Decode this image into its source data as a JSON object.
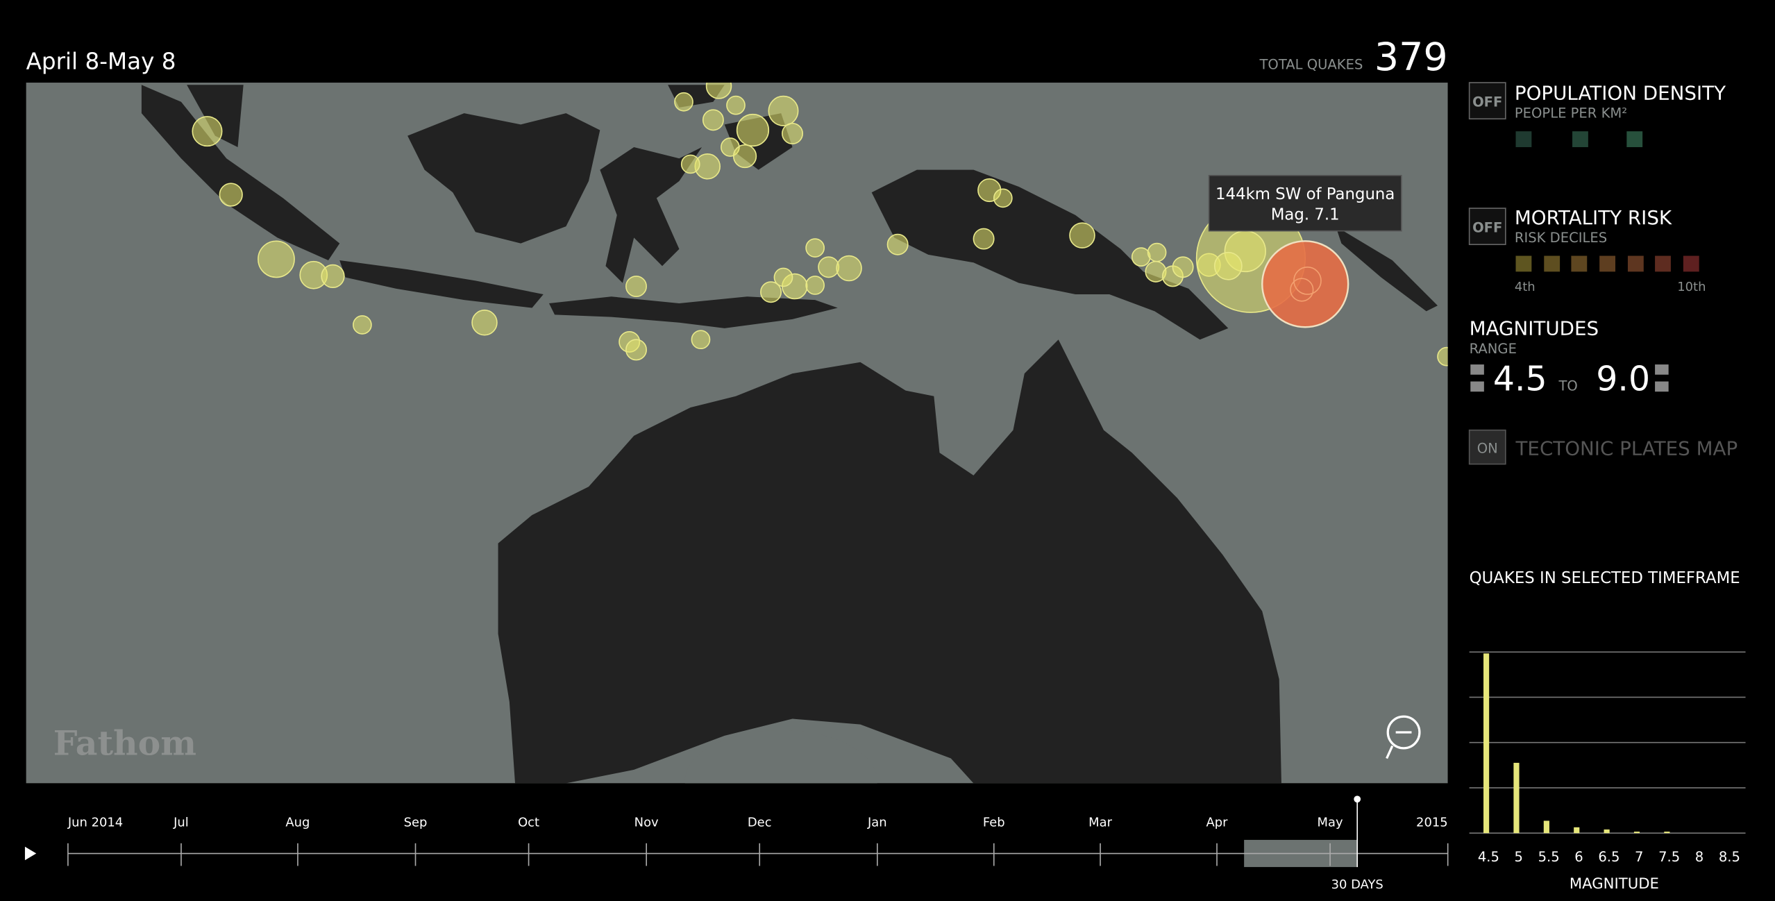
{
  "header": {
    "date_range": "April 8-May 8",
    "total_label": "TOTAL QUAKES",
    "total": 379
  },
  "map": {
    "tooltip": {
      "place": "144km SW of Panguna",
      "magnitude": "Mag. 7.1"
    },
    "logo": "Fathom"
  },
  "panel": {
    "population": {
      "toggle": "OFF",
      "title": "POPULATION DENSITY",
      "subtitle": "PEOPLE PER KM²"
    },
    "mortality": {
      "toggle": "OFF",
      "title": "MORTALITY RISK",
      "subtitle": "RISK DECILES",
      "low": "4th",
      "high": "10th"
    },
    "magnitudes": {
      "title": "MAGNITUDES",
      "subtitle": "RANGE",
      "min": "4.5",
      "to": "TO",
      "max": "9.0"
    },
    "plates": {
      "toggle": "ON",
      "title": "TECTONIC PLATES MAP"
    }
  },
  "timeline": {
    "labels": [
      "Jun 2014",
      "Jul",
      "Aug",
      "Sep",
      "Oct",
      "Nov",
      "Dec",
      "Jan",
      "Feb",
      "Mar",
      "Apr",
      "May",
      "2015"
    ],
    "selection": "30 DAYS"
  },
  "chart_data": {
    "type": "bar",
    "title": "QUAKES IN SELECTED TIMEFRAME",
    "xlabel": "MAGNITUDE",
    "categories": [
      "4.5",
      "5",
      "5.5",
      "6",
      "6.5",
      "7",
      "7.5",
      "8",
      "8.5"
    ],
    "values": [
      248,
      97,
      17,
      8,
      5,
      2,
      2,
      0,
      0
    ],
    "color": "#e6e67a",
    "ylim": [
      0,
      250
    ],
    "yticks": [
      0,
      62.5,
      125,
      187.5,
      250
    ],
    "grid": true
  }
}
